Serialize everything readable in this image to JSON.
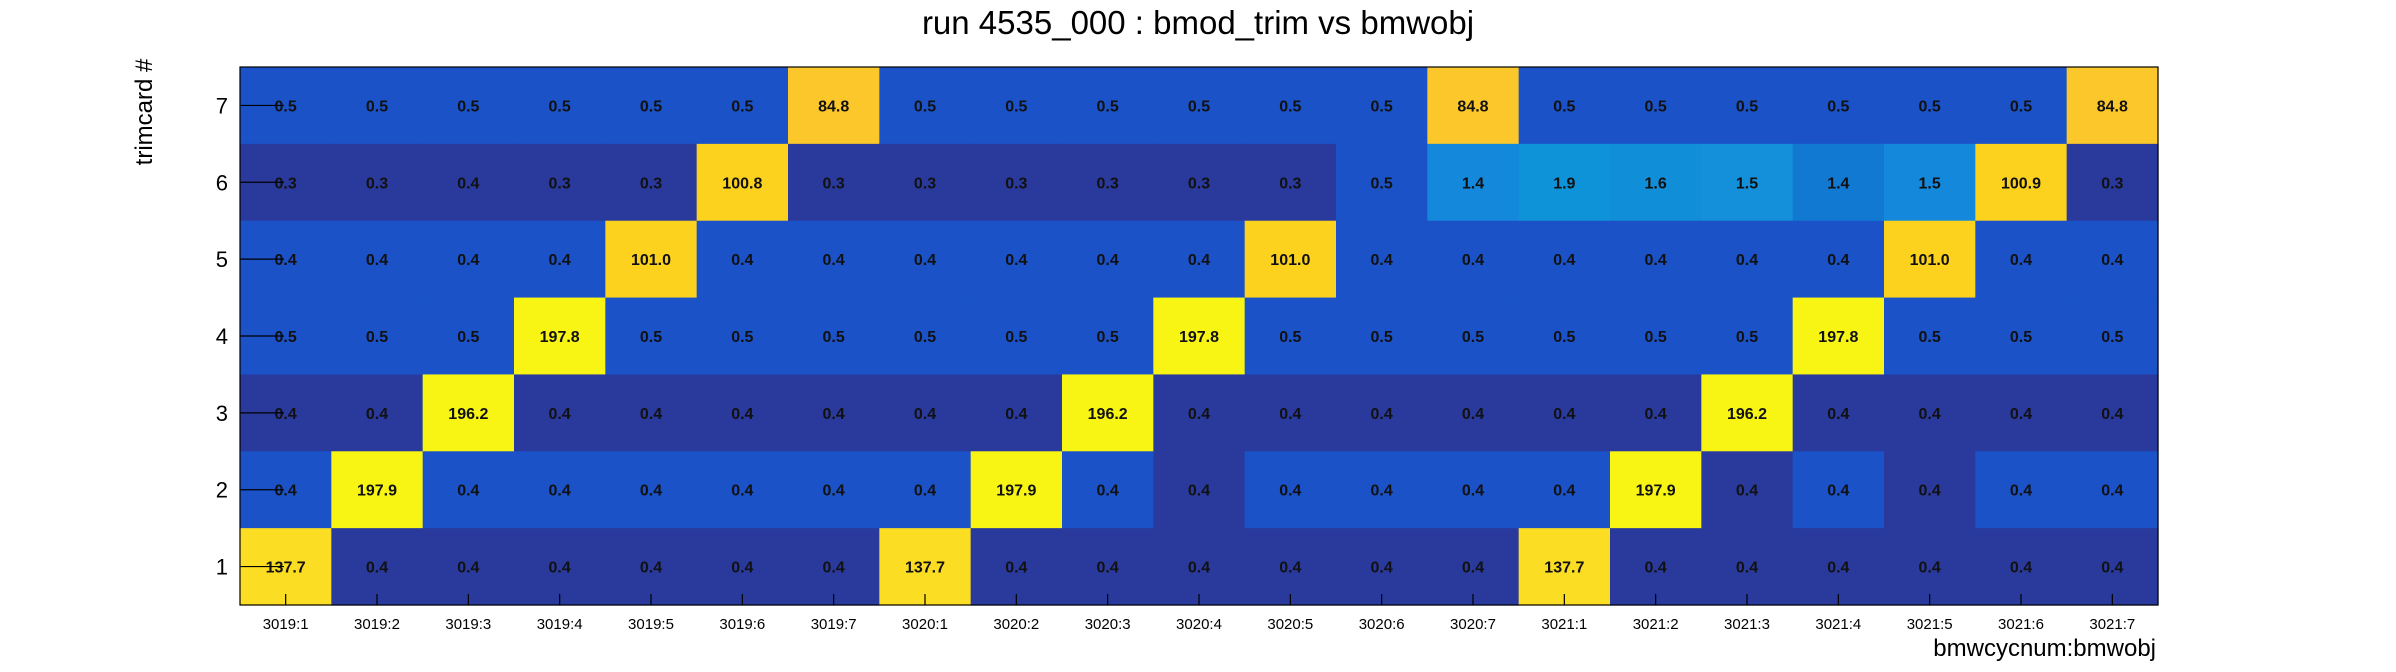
{
  "chart_data": {
    "type": "heatmap",
    "title": "run 4535_000 : bmod_trim vs bmwobj",
    "xlabel": "bmwcycnum:bmwobj",
    "ylabel": "trimcard #",
    "x_categories": [
      "3019:1",
      "3019:2",
      "3019:3",
      "3019:4",
      "3019:5",
      "3019:6",
      "3019:7",
      "3020:1",
      "3020:2",
      "3020:3",
      "3020:4",
      "3020:5",
      "3020:6",
      "3020:7",
      "3021:1",
      "3021:2",
      "3021:3",
      "3021:4",
      "3021:5",
      "3021:6",
      "3021:7"
    ],
    "y_categories": [
      "1",
      "2",
      "3",
      "4",
      "5",
      "6",
      "7"
    ],
    "rows_top_to_bottom": [
      "7",
      "6",
      "5",
      "4",
      "3",
      "2",
      "1"
    ],
    "values": [
      [
        "0.5",
        "0.5",
        "0.5",
        "0.5",
        "0.5",
        "0.5",
        "84.8",
        "0.5",
        "0.5",
        "0.5",
        "0.5",
        "0.5",
        "0.5",
        "84.8",
        "0.5",
        "0.5",
        "0.5",
        "0.5",
        "0.5",
        "0.5",
        "84.8"
      ],
      [
        "0.3",
        "0.3",
        "0.4",
        "0.3",
        "0.3",
        "100.8",
        "0.3",
        "0.3",
        "0.3",
        "0.3",
        "0.3",
        "0.3",
        "0.5",
        "1.4",
        "1.9",
        "1.6",
        "1.5",
        "1.4",
        "1.5",
        "100.9",
        "0.3"
      ],
      [
        "0.4",
        "0.4",
        "0.4",
        "0.4",
        "101.0",
        "0.4",
        "0.4",
        "0.4",
        "0.4",
        "0.4",
        "0.4",
        "101.0",
        "0.4",
        "0.4",
        "0.4",
        "0.4",
        "0.4",
        "0.4",
        "101.0",
        "0.4",
        "0.4"
      ],
      [
        "0.5",
        "0.5",
        "0.5",
        "197.8",
        "0.5",
        "0.5",
        "0.5",
        "0.5",
        "0.5",
        "0.5",
        "197.8",
        "0.5",
        "0.5",
        "0.5",
        "0.5",
        "0.5",
        "0.5",
        "197.8",
        "0.5",
        "0.5",
        "0.5"
      ],
      [
        "0.4",
        "0.4",
        "196.2",
        "0.4",
        "0.4",
        "0.4",
        "0.4",
        "0.4",
        "0.4",
        "196.2",
        "0.4",
        "0.4",
        "0.4",
        "0.4",
        "0.4",
        "0.4",
        "196.2",
        "0.4",
        "0.4",
        "0.4",
        "0.4"
      ],
      [
        "0.4",
        "197.9",
        "0.4",
        "0.4",
        "0.4",
        "0.4",
        "0.4",
        "0.4",
        "197.9",
        "0.4",
        "0.4",
        "0.4",
        "0.4",
        "0.4",
        "0.4",
        "197.9",
        "0.4",
        "0.4",
        "0.4",
        "0.4",
        "0.4"
      ],
      [
        "137.7",
        "0.4",
        "0.4",
        "0.4",
        "0.4",
        "0.4",
        "0.4",
        "137.7",
        "0.4",
        "0.4",
        "0.4",
        "0.4",
        "0.4",
        "0.4",
        "137.7",
        "0.4",
        "0.4",
        "0.4",
        "0.4",
        "0.4",
        "0.4"
      ]
    ],
    "cell_colors": [
      [
        "#1b52c8",
        "#1b52c8",
        "#1b52c8",
        "#1b52c8",
        "#1b52c8",
        "#1b52c8",
        "#fbc72b",
        "#1b52c8",
        "#1b52c8",
        "#1b52c8",
        "#1b52c8",
        "#1b52c8",
        "#1b52c8",
        "#fbc72b",
        "#1b52c8",
        "#1b52c8",
        "#1b52c8",
        "#1b52c8",
        "#1b52c8",
        "#1b52c8",
        "#fbc72b"
      ],
      [
        "#2a3a9c",
        "#2a3a9c",
        "#2a3a9c",
        "#2a3a9c",
        "#2a3a9c",
        "#fcd21e",
        "#2a3a9c",
        "#2a3a9c",
        "#2a3a9c",
        "#2a3a9c",
        "#2a3a9c",
        "#2a3a9c",
        "#1b52c8",
        "#1488db",
        "#0e93d8",
        "#108ed8",
        "#1390d9",
        "#1279d2",
        "#1488db",
        "#fcd21e",
        "#2a3a9c"
      ],
      [
        "#1b52c8",
        "#1b52c8",
        "#1b52c8",
        "#1b52c8",
        "#fcd21e",
        "#1b52c8",
        "#1b52c8",
        "#1b52c8",
        "#1b52c8",
        "#1b52c8",
        "#1b52c8",
        "#fcd21e",
        "#1b52c8",
        "#1b52c8",
        "#1b52c8",
        "#1b52c8",
        "#1b52c8",
        "#1b52c8",
        "#fcd21e",
        "#1b52c8",
        "#1b52c8"
      ],
      [
        "#1b52c8",
        "#1b52c8",
        "#1b52c8",
        "#f8f515",
        "#1b52c8",
        "#1b52c8",
        "#1b52c8",
        "#1b52c8",
        "#1b52c8",
        "#1b52c8",
        "#f8f515",
        "#1b52c8",
        "#1b52c8",
        "#1b52c8",
        "#1b52c8",
        "#1b52c8",
        "#1b52c8",
        "#f8f515",
        "#1b52c8",
        "#1b52c8",
        "#1b52c8"
      ],
      [
        "#2a3a9c",
        "#2a3a9c",
        "#f8f515",
        "#2a3a9c",
        "#2a3a9c",
        "#2a3a9c",
        "#2a3a9c",
        "#2a3a9c",
        "#2a3a9c",
        "#f8f515",
        "#2a3a9c",
        "#2a3a9c",
        "#2a3a9c",
        "#2a3a9c",
        "#2a3a9c",
        "#2a3a9c",
        "#f8f515",
        "#2a3a9c",
        "#2a3a9c",
        "#2a3a9c",
        "#2a3a9c"
      ],
      [
        "#1b52c8",
        "#f8f515",
        "#1b52c8",
        "#1b52c8",
        "#1b52c8",
        "#1b52c8",
        "#1b52c8",
        "#1b52c8",
        "#f8f515",
        "#1b52c8",
        "#2a3a9c",
        "#1b52c8",
        "#1b52c8",
        "#1b52c8",
        "#1b52c8",
        "#f8f515",
        "#2a3a9c",
        "#1b52c8",
        "#2a3a9c",
        "#1b52c8",
        "#1b52c8"
      ],
      [
        "#fbdd24",
        "#2a3a9c",
        "#2a3a9c",
        "#2a3a9c",
        "#2a3a9c",
        "#2a3a9c",
        "#2a3a9c",
        "#fbdd24",
        "#2a3a9c",
        "#2a3a9c",
        "#2a3a9c",
        "#2a3a9c",
        "#2a3a9c",
        "#2a3a9c",
        "#fbdd24",
        "#2a3a9c",
        "#2a3a9c",
        "#2a3a9c",
        "#2a3a9c",
        "#2a3a9c",
        "#2a3a9c"
      ]
    ],
    "grid": false,
    "legend": "none"
  }
}
